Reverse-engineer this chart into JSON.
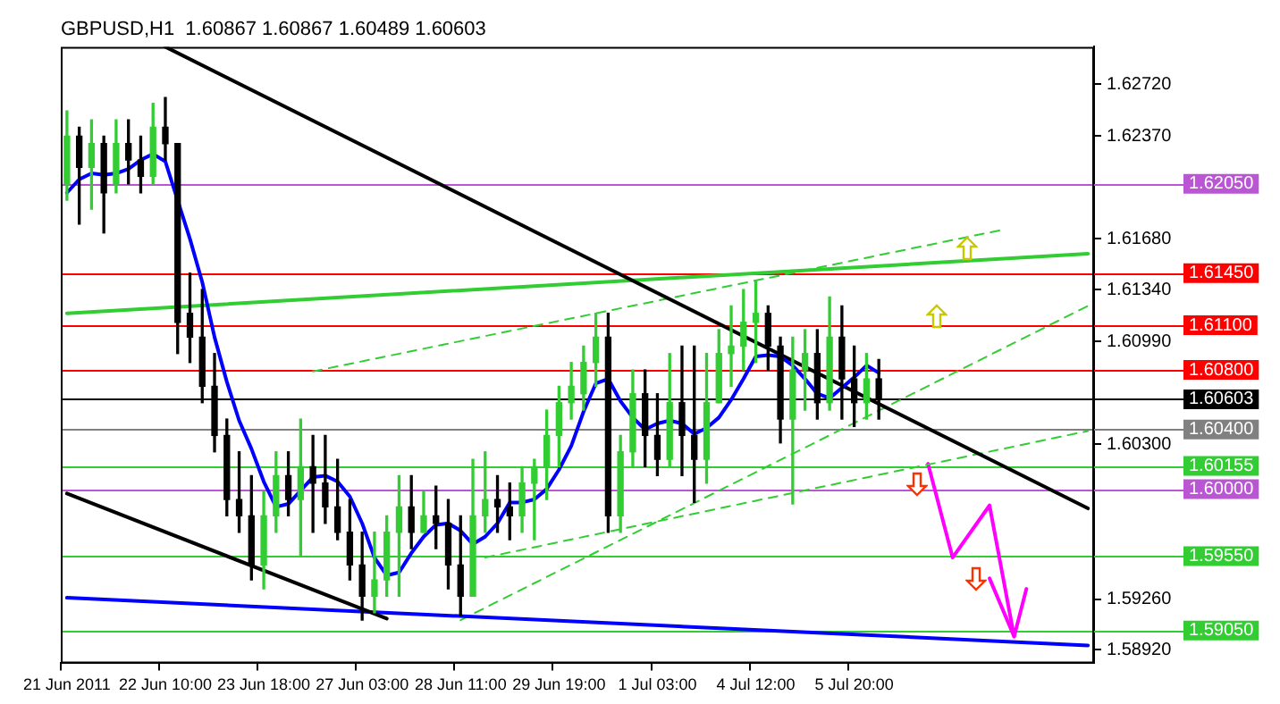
{
  "chart_data": {
    "type": "candlestick",
    "title": "GBPUSD,H1  1.60867 1.60867 1.60489 1.60603",
    "categories": [
      "21 Jun 2011",
      null,
      null,
      null,
      null,
      null,
      null,
      null,
      "22 Jun 10:00",
      null,
      null,
      null,
      null,
      null,
      null,
      null,
      "23 Jun 18:00",
      null,
      null,
      null,
      null,
      null,
      null,
      null,
      "27 Jun 03:00",
      null,
      null,
      null,
      null,
      null,
      null,
      null,
      "28 Jun 11:00",
      null,
      null,
      null,
      null,
      null,
      null,
      null,
      "29 Jun 19:00",
      null,
      null,
      null,
      null,
      null,
      null,
      null,
      "1 Jul 03:00",
      null,
      null,
      null,
      null,
      null,
      null,
      null,
      "4 Jul 12:00",
      null,
      null,
      null,
      null,
      null,
      null,
      null,
      "5 Jul 20:00",
      null,
      null,
      null,
      null,
      null,
      null,
      null,
      null,
      null,
      null,
      null,
      null,
      null,
      null,
      null,
      null,
      null,
      null,
      null
    ],
    "ohlc": [
      [
        1.6205,
        1.6254,
        1.6194,
        1.6237
      ],
      [
        1.6237,
        1.6243,
        1.6178,
        1.6216
      ],
      [
        1.6216,
        1.6248,
        1.6188,
        1.6232
      ],
      [
        1.6232,
        1.6237,
        1.6172,
        1.6199
      ],
      [
        1.6205,
        1.6248,
        1.6199,
        1.6232
      ],
      [
        1.6232,
        1.6248,
        1.6205,
        1.6221
      ],
      [
        1.6221,
        1.6237,
        1.6199,
        1.621
      ],
      [
        1.621,
        1.6259,
        1.6205,
        1.6243
      ],
      [
        1.6243,
        1.6263,
        1.6221,
        1.6232
      ],
      [
        1.6232,
        1.6232,
        1.6091,
        1.6112
      ],
      [
        1.6118,
        1.6145,
        1.6085,
        1.6102
      ],
      [
        1.6102,
        1.6134,
        1.6058,
        1.6069
      ],
      [
        1.6069,
        1.6091,
        1.6025,
        1.6036
      ],
      [
        1.6036,
        1.6047,
        1.5982,
        1.5993
      ],
      [
        1.5993,
        1.6025,
        1.5971,
        1.5982
      ],
      [
        1.5982,
        1.6009,
        1.5939,
        1.5949
      ],
      [
        1.5949,
        1.5998,
        1.5933,
        1.5982
      ],
      [
        1.5982,
        1.6025,
        1.5971,
        1.6009
      ],
      [
        1.6009,
        1.6025,
        1.5982,
        1.5993
      ],
      [
        1.5993,
        1.6047,
        1.5955,
        1.6015
      ],
      [
        1.6015,
        1.6036,
        1.5971,
        1.6004
      ],
      [
        1.6004,
        1.6036,
        1.5977,
        1.5988
      ],
      [
        1.5988,
        1.602,
        1.5966,
        1.5971
      ],
      [
        1.5971,
        1.5993,
        1.5939,
        1.5949
      ],
      [
        1.5949,
        1.5971,
        1.5912,
        1.5928
      ],
      [
        1.5928,
        1.5971,
        1.5917,
        1.5939
      ],
      [
        1.5939,
        1.5982,
        1.5928,
        1.5971
      ],
      [
        1.5971,
        1.6009,
        1.5928,
        1.5988
      ],
      [
        1.5988,
        1.6009,
        1.596,
        1.5971
      ],
      [
        1.5971,
        1.5998,
        1.5971,
        1.5982
      ],
      [
        1.5982,
        1.6002,
        1.596,
        1.5977
      ],
      [
        1.5977,
        1.5993,
        1.5933,
        1.5949
      ],
      [
        1.5949,
        1.5982,
        1.5915,
        1.5928
      ],
      [
        1.5928,
        1.602,
        1.5928,
        1.5982
      ],
      [
        1.5982,
        1.6025,
        1.5971,
        1.5993
      ],
      [
        1.5993,
        1.6009,
        1.5971,
        1.5988
      ],
      [
        1.5988,
        1.6004,
        1.5966,
        1.5982
      ],
      [
        1.5982,
        1.6015,
        1.5971,
        1.6004
      ],
      [
        1.6004,
        1.602,
        1.5966,
        1.6015
      ],
      [
        1.6015,
        1.6053,
        1.5993,
        1.6036
      ],
      [
        1.6036,
        1.6069,
        1.6015,
        1.6058
      ],
      [
        1.6058,
        1.6085,
        1.6047,
        1.6069
      ],
      [
        1.6064,
        1.6096,
        1.6053,
        1.6085
      ],
      [
        1.6085,
        1.6118,
        1.6069,
        1.6102
      ],
      [
        1.6102,
        1.6118,
        1.5971,
        1.5982
      ],
      [
        1.5982,
        1.6036,
        1.5971,
        1.6025
      ],
      [
        1.6025,
        1.608,
        1.6015,
        1.6064
      ],
      [
        1.6064,
        1.608,
        1.6015,
        1.6036
      ],
      [
        1.6036,
        1.6064,
        1.6009,
        1.602
      ],
      [
        1.602,
        1.6091,
        1.6015,
        1.6058
      ],
      [
        1.6058,
        1.6096,
        1.6009,
        1.6036
      ],
      [
        1.6036,
        1.6096,
        1.5991,
        1.602
      ],
      [
        1.602,
        1.6091,
        1.6004,
        1.6058
      ],
      [
        1.6058,
        1.6107,
        1.6058,
        1.6091
      ],
      [
        1.6091,
        1.6123,
        1.6069,
        1.6096
      ],
      [
        1.6096,
        1.6134,
        1.608,
        1.6112
      ],
      [
        1.6112,
        1.614,
        1.6085,
        1.6118
      ],
      [
        1.6118,
        1.6123,
        1.608,
        1.6096
      ],
      [
        1.6096,
        1.6102,
        1.6031,
        1.6047
      ],
      [
        1.6047,
        1.6102,
        1.599,
        1.608
      ],
      [
        1.608,
        1.6107,
        1.6053,
        1.6091
      ],
      [
        1.6091,
        1.6107,
        1.6047,
        1.6058
      ],
      [
        1.6058,
        1.6129,
        1.6053,
        1.6102
      ],
      [
        1.6102,
        1.6123,
        1.6047,
        1.6074
      ],
      [
        1.6074,
        1.6096,
        1.6042,
        1.6058
      ],
      [
        1.6058,
        1.6091,
        1.6047,
        1.6074
      ],
      [
        1.6074,
        1.6087,
        1.6047,
        1.606
      ],
      null,
      null,
      null,
      null,
      null,
      null,
      null,
      null,
      null,
      null,
      null,
      null,
      null,
      null,
      null,
      null,
      null
    ],
    "colors": [
      "#32cd32",
      "#000000",
      "#32cd32",
      "#000000",
      "#32cd32",
      "#000000",
      "#000000",
      "#32cd32",
      "#000000",
      "#000000",
      "#000000",
      "#000000",
      "#000000",
      "#000000",
      "#000000",
      "#000000",
      "#32cd32",
      "#32cd32",
      "#000000",
      "#32cd32",
      "#000000",
      "#000000",
      "#000000",
      "#000000",
      "#000000",
      "#32cd32",
      "#32cd32",
      "#32cd32",
      "#000000",
      "#32cd32",
      "#000000",
      "#000000",
      "#000000",
      "#32cd32",
      "#32cd32",
      "#000000",
      "#000000",
      "#32cd32",
      "#32cd32",
      "#32cd32",
      "#32cd32",
      "#32cd32",
      "#32cd32",
      "#32cd32",
      "#000000",
      "#32cd32",
      "#32cd32",
      "#000000",
      "#000000",
      "#32cd32",
      "#000000",
      "#000000",
      "#32cd32",
      "#32cd32",
      "#32cd32",
      "#32cd32",
      "#32cd32",
      "#000000",
      "#000000",
      "#32cd32",
      "#32cd32",
      "#000000",
      "#32cd32",
      "#000000",
      "#000000",
      "#32cd32",
      "#000000",
      null,
      null,
      null,
      null,
      null,
      null,
      null,
      null,
      null,
      null,
      null,
      null,
      null,
      null,
      null,
      null,
      null
    ],
    "series": [
      {
        "type": "line",
        "color": "#0000ff",
        "values": [
          1.6199,
          1.6208,
          1.6212,
          1.6211,
          1.6212,
          1.6215,
          1.6221,
          1.6225,
          1.622,
          1.6194,
          1.6168,
          1.6139,
          1.6102,
          1.6072,
          1.6046,
          1.6027,
          1.6005,
          1.5988,
          1.599,
          1.5999,
          1.6008,
          1.6009,
          1.6005,
          1.5995,
          1.5977,
          1.5954,
          1.5942,
          1.5944,
          1.5957,
          1.5968,
          1.5976,
          1.5977,
          1.5972,
          1.5963,
          1.5968,
          1.5977,
          1.5991,
          1.5991,
          1.5993,
          1.6,
          1.6013,
          1.6029,
          1.6052,
          1.6071,
          1.6074,
          1.6059,
          1.6048,
          1.604,
          1.6044,
          1.6046,
          1.6044,
          1.6037,
          1.6041,
          1.6048,
          1.606,
          1.6074,
          1.6089,
          1.609,
          1.6089,
          1.6083,
          1.6074,
          1.6064,
          1.6061,
          1.6068,
          1.6075,
          1.6083,
          1.6078,
          null,
          null,
          null,
          null,
          null,
          null,
          null,
          null,
          null,
          null,
          null,
          null,
          null,
          null,
          null,
          null,
          null
        ]
      },
      {
        "type": "line",
        "color": "#000000",
        "values": [
          1.5997,
          null,
          null,
          null,
          null,
          null,
          null,
          null,
          null,
          null,
          null,
          null,
          null,
          null,
          null,
          null,
          null,
          null,
          null,
          null,
          null,
          null,
          null,
          null,
          null,
          null,
          1.5913,
          null,
          null,
          null,
          null,
          null,
          null,
          null,
          null,
          null,
          null,
          null,
          null,
          null,
          null,
          null,
          null,
          null,
          null,
          null,
          null,
          null,
          null,
          null,
          null,
          null,
          null,
          null,
          null,
          null,
          null,
          null,
          null,
          null,
          null,
          null,
          null,
          null,
          null,
          null,
          null,
          null,
          null,
          null,
          null,
          null,
          null,
          null,
          null,
          null,
          null,
          null,
          null,
          null,
          null,
          null,
          null,
          null
        ]
      },
      {
        "type": "line",
        "color": "#000000",
        "values": [
          null,
          null,
          null,
          null,
          null,
          null,
          null,
          null,
          1.6297,
          null,
          null,
          null,
          null,
          null,
          null,
          null,
          null,
          null,
          null,
          null,
          null,
          null,
          null,
          null,
          null,
          null,
          null,
          null,
          null,
          null,
          null,
          null,
          null,
          null,
          null,
          null,
          null,
          null,
          null,
          null,
          null,
          null,
          null,
          null,
          null,
          null,
          null,
          null,
          null,
          null,
          null,
          null,
          null,
          null,
          null,
          null,
          null,
          null,
          null,
          null,
          null,
          null,
          null,
          null,
          null,
          null,
          null,
          null,
          null,
          null,
          null,
          null,
          null,
          null,
          null,
          null,
          null,
          null,
          null,
          null,
          null,
          null,
          null,
          1.5987
        ]
      },
      {
        "type": "line",
        "color": "#32cd32",
        "values": [
          1.6118,
          null,
          null,
          null,
          null,
          null,
          null,
          null,
          null,
          null,
          null,
          null,
          null,
          null,
          null,
          null,
          null,
          null,
          null,
          null,
          null,
          null,
          null,
          null,
          null,
          null,
          null,
          null,
          null,
          null,
          null,
          null,
          null,
          null,
          null,
          null,
          null,
          null,
          null,
          null,
          null,
          null,
          null,
          null,
          null,
          null,
          null,
          null,
          null,
          null,
          null,
          null,
          null,
          null,
          null,
          null,
          null,
          null,
          null,
          null,
          null,
          null,
          null,
          null,
          null,
          null,
          null,
          null,
          null,
          null,
          null,
          null,
          null,
          null,
          null,
          null,
          null,
          null,
          null,
          null,
          null,
          null,
          null,
          1.6158
        ]
      },
      {
        "type": "line",
        "color": "#0000ff",
        "values": [
          1.5927,
          null,
          null,
          null,
          null,
          null,
          null,
          null,
          null,
          null,
          null,
          null,
          null,
          null,
          null,
          null,
          null,
          null,
          null,
          null,
          null,
          null,
          null,
          null,
          null,
          null,
          null,
          null,
          null,
          null,
          null,
          null,
          null,
          null,
          null,
          null,
          null,
          null,
          null,
          null,
          null,
          null,
          null,
          null,
          null,
          null,
          null,
          null,
          null,
          null,
          null,
          null,
          null,
          null,
          null,
          null,
          null,
          null,
          null,
          null,
          null,
          null,
          null,
          null,
          null,
          null,
          null,
          null,
          null,
          null,
          null,
          null,
          null,
          null,
          null,
          null,
          null,
          null,
          null,
          null,
          null,
          null,
          null,
          1.5895
        ]
      },
      {
        "type": "line",
        "color": "#32cd32",
        "line_style": "dashed",
        "values": [
          null,
          null,
          null,
          null,
          null,
          null,
          null,
          null,
          null,
          null,
          null,
          null,
          null,
          null,
          null,
          null,
          null,
          null,
          null,
          null,
          1.6079,
          null,
          null,
          null,
          null,
          null,
          null,
          null,
          null,
          null,
          null,
          null,
          null,
          null,
          null,
          null,
          null,
          null,
          null,
          null,
          null,
          null,
          null,
          null,
          null,
          null,
          null,
          null,
          null,
          null,
          null,
          null,
          null,
          null,
          null,
          null,
          null,
          null,
          null,
          null,
          null,
          null,
          null,
          null,
          null,
          null,
          null,
          null,
          null,
          null,
          null,
          null,
          null,
          null,
          null,
          null,
          1.6174,
          null,
          null,
          null,
          null,
          null,
          null,
          null
        ]
      },
      {
        "type": "line",
        "color": "#32cd32",
        "line_style": "dashed",
        "values": [
          null,
          null,
          null,
          null,
          null,
          null,
          null,
          null,
          null,
          null,
          null,
          null,
          null,
          null,
          null,
          null,
          null,
          null,
          null,
          null,
          null,
          null,
          null,
          null,
          null,
          null,
          null,
          null,
          null,
          null,
          null,
          null,
          1.5912,
          null,
          null,
          null,
          null,
          null,
          null,
          null,
          null,
          null,
          null,
          null,
          null,
          null,
          null,
          null,
          null,
          null,
          null,
          null,
          null,
          null,
          null,
          null,
          null,
          null,
          null,
          null,
          null,
          null,
          null,
          null,
          null,
          null,
          null,
          null,
          null,
          null,
          null,
          null,
          null,
          null,
          null,
          null,
          null,
          null,
          null,
          null,
          null,
          null,
          null,
          1.6123
        ]
      },
      {
        "type": "line",
        "color": "#32cd32",
        "line_style": "dashed",
        "values": [
          null,
          null,
          null,
          null,
          null,
          null,
          null,
          null,
          null,
          null,
          null,
          null,
          null,
          null,
          null,
          null,
          null,
          null,
          null,
          null,
          null,
          null,
          null,
          null,
          null,
          null,
          null,
          null,
          null,
          null,
          null,
          null,
          null,
          null,
          1.5954,
          null,
          null,
          null,
          null,
          null,
          null,
          null,
          null,
          null,
          null,
          null,
          null,
          null,
          null,
          null,
          null,
          null,
          null,
          null,
          null,
          null,
          null,
          null,
          null,
          null,
          null,
          null,
          null,
          null,
          null,
          null,
          null,
          null,
          null,
          null,
          null,
          null,
          null,
          null,
          null,
          null,
          null,
          null,
          null,
          null,
          null,
          null,
          null,
          1.6039
        ]
      },
      {
        "type": "line",
        "color": "#ff00ff",
        "values": [
          null,
          null,
          null,
          null,
          null,
          null,
          null,
          null,
          null,
          null,
          null,
          null,
          null,
          null,
          null,
          null,
          null,
          null,
          null,
          null,
          null,
          null,
          null,
          null,
          null,
          null,
          null,
          null,
          null,
          null,
          null,
          null,
          null,
          null,
          null,
          null,
          null,
          null,
          null,
          null,
          null,
          null,
          null,
          null,
          null,
          null,
          null,
          null,
          null,
          null,
          null,
          null,
          null,
          null,
          null,
          null,
          null,
          null,
          null,
          null,
          null,
          null,
          null,
          null,
          null,
          null,
          null,
          null,
          null,
          null,
          1.6017,
          null,
          1.5954,
          null,
          null,
          1.5989,
          null,
          1.5901,
          1.5933,
          null,
          null,
          null,
          null,
          null
        ]
      },
      {
        "type": "line",
        "color": "#ff00ff",
        "values": [
          null,
          null,
          null,
          null,
          null,
          null,
          null,
          null,
          null,
          null,
          null,
          null,
          null,
          null,
          null,
          null,
          null,
          null,
          null,
          null,
          null,
          null,
          null,
          null,
          null,
          null,
          null,
          null,
          null,
          null,
          null,
          null,
          null,
          null,
          null,
          null,
          null,
          null,
          null,
          null,
          null,
          null,
          null,
          null,
          null,
          null,
          null,
          null,
          null,
          null,
          null,
          null,
          null,
          null,
          null,
          null,
          null,
          null,
          null,
          null,
          null,
          null,
          null,
          null,
          null,
          null,
          null,
          null,
          null,
          null,
          null,
          null,
          null,
          null,
          null,
          1.594,
          null,
          1.5901,
          null,
          null,
          null,
          null,
          null,
          null
        ]
      }
    ],
    "ref_lines": [
      {
        "axis": "y",
        "value": 1.6205,
        "label": "1.62050",
        "color": "#ba55d3"
      },
      {
        "axis": "y",
        "value": 1.6145,
        "label": "1.61450",
        "color": "#ff0000"
      },
      {
        "axis": "y",
        "value": 1.611,
        "label": "1.61100",
        "color": "#ff0000"
      },
      {
        "axis": "y",
        "value": 1.608,
        "label": "1.60800",
        "color": "#ff0000"
      },
      {
        "axis": "y",
        "value": 1.60603,
        "label": "1.60603",
        "color": "#000000"
      },
      {
        "axis": "y",
        "value": 1.604,
        "label": "1.60400",
        "color": "#808080"
      },
      {
        "axis": "y",
        "value": 1.60155,
        "label": "1.60155",
        "color": "#32cd32"
      },
      {
        "axis": "y",
        "value": 1.6,
        "label": "1.60000",
        "color": "#ba55d3"
      },
      {
        "axis": "y",
        "value": 1.5955,
        "label": "1.59550",
        "color": "#32cd32"
      },
      {
        "axis": "y",
        "value": 1.5905,
        "label": "1.59050",
        "color": "#32cd32"
      }
    ],
    "ylim": [
      1.5883,
      1.6297
    ],
    "yticks": [
      {
        "value": 1.5892,
        "label": "1.58920"
      },
      {
        "value": 1.5926,
        "label": "1.59260"
      },
      {
        "value": 1.603,
        "label": "1.60300"
      },
      {
        "value": 1.6099,
        "label": "1.60990"
      },
      {
        "value": 1.6134,
        "label": "1.61340"
      },
      {
        "value": 1.6168,
        "label": "1.61680"
      },
      {
        "value": 1.6237,
        "label": "1.62370"
      },
      {
        "value": 1.6272,
        "label": "1.62720"
      }
    ],
    "marker": "none",
    "grid": false,
    "legend": false
  }
}
